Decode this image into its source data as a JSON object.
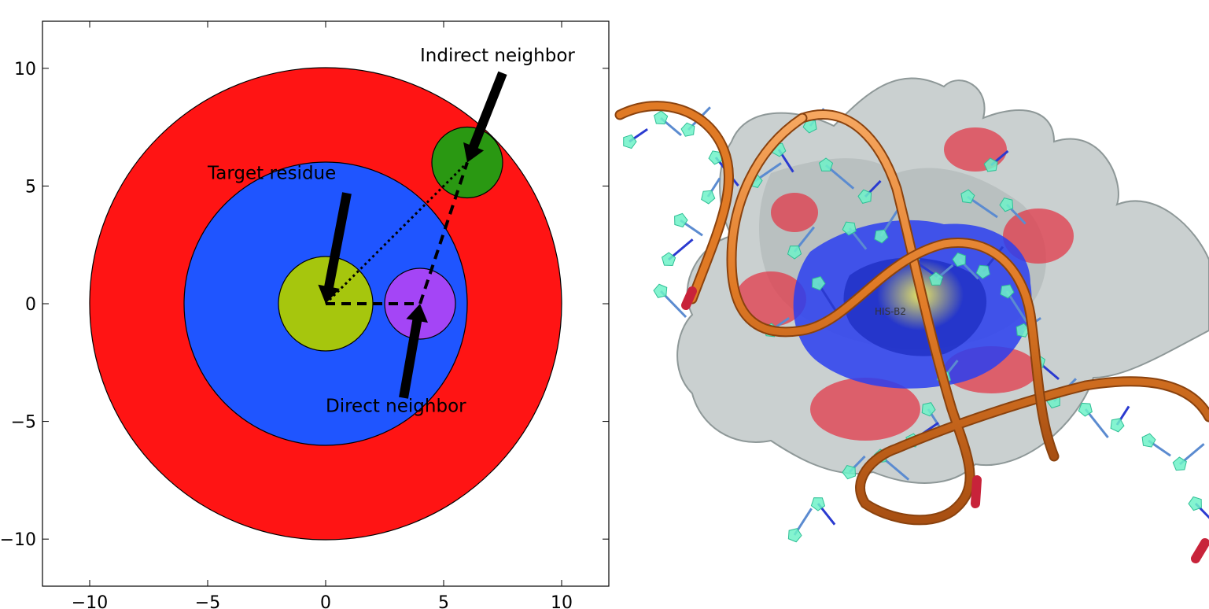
{
  "colors": {
    "outer_shell": "#ff1414",
    "inner_shell": "#1f55ff",
    "target": "#a6c60d",
    "direct": "#a445f6",
    "indirect": "#2a9812",
    "surface_gray": "#b4bcbc",
    "backbone_orange": "#e07a25",
    "nucleotide_cyan": "#6ff2c8",
    "highlight_yellow": "#e6e23c"
  },
  "chart_data": {
    "type": "scatter",
    "xlim": [
      -12,
      12
    ],
    "ylim": [
      -12,
      12
    ],
    "x_ticks": [
      "−10",
      "−5",
      "0",
      "5",
      "10"
    ],
    "y_ticks": [
      "10",
      "5",
      "0",
      "−5",
      "−10"
    ],
    "circles": [
      {
        "cx": 0,
        "cy": 0,
        "r": 10,
        "role": "outer shell"
      },
      {
        "cx": 0,
        "cy": 0,
        "r": 6,
        "role": "inner shell"
      },
      {
        "cx": 0,
        "cy": 0,
        "r": 2,
        "role": "target residue"
      },
      {
        "cx": 4,
        "cy": 0,
        "r": 1.5,
        "role": "direct neighbor"
      },
      {
        "cx": 6,
        "cy": 6,
        "r": 1.5,
        "role": "indirect neighbor"
      }
    ],
    "annotations": [
      {
        "text": "Target residue",
        "text_at": [
          -5,
          5.3
        ],
        "point_to": [
          0,
          0
        ]
      },
      {
        "text": "Direct neighbor",
        "text_at": [
          0,
          -4.6
        ],
        "point_to": [
          4,
          0
        ]
      },
      {
        "text": "Indirect neighbor",
        "text_at": [
          4,
          10.3
        ],
        "point_to": [
          6,
          6
        ]
      }
    ]
  },
  "molecule": {
    "residue_label": "HIS-B2"
  }
}
